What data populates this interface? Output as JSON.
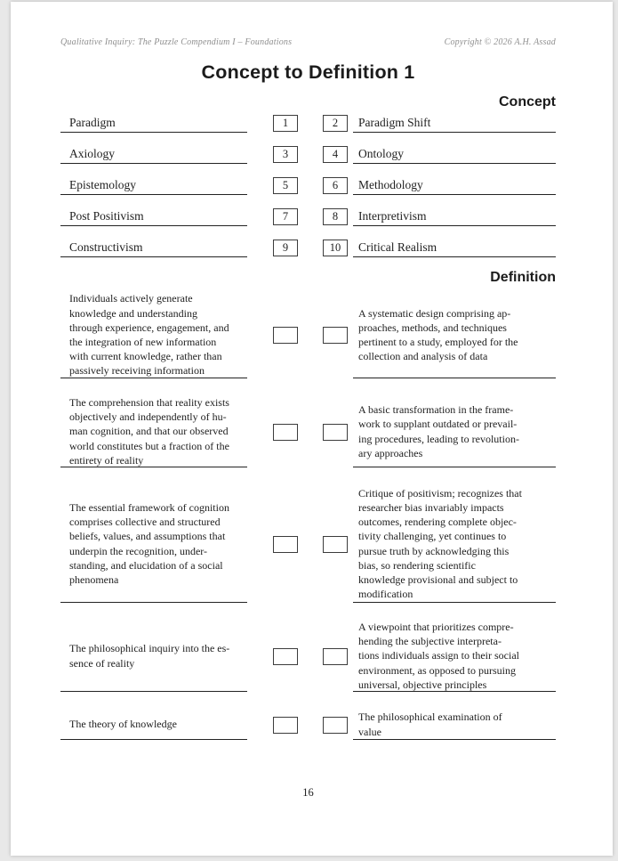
{
  "header": {
    "left": "Qualitative Inquiry: The Puzzle Compendium I – Foundations",
    "right": "Copyright © 2026 A.H. Assad"
  },
  "title": "Concept to Definition 1",
  "concept_section": {
    "heading": "Concept",
    "rows": [
      {
        "left_term": "Paradigm",
        "left_num": "1",
        "right_num": "2",
        "right_term": "Paradigm Shift"
      },
      {
        "left_term": "Axiology",
        "left_num": "3",
        "right_num": "4",
        "right_term": "Ontology"
      },
      {
        "left_term": "Epistemology",
        "left_num": "5",
        "right_num": "6",
        "right_term": "Methodology"
      },
      {
        "left_term": "Post Positivism",
        "left_num": "7",
        "right_num": "8",
        "right_term": "Interpretivism"
      },
      {
        "left_term": "Constructivism",
        "left_num": "9",
        "right_num": "10",
        "right_term": "Critical Realism"
      }
    ]
  },
  "definition_section": {
    "heading": "Definition",
    "rows": [
      {
        "left_text": "Individuals actively generate\nknowledge and understanding\nthrough experience, engagement, and\nthe integration of new information\nwith current knowledge, rather than\npassively receiving information",
        "right_text": "A systematic design comprising ap-\nproaches, methods, and techniques\npertinent to a study, employed for the\ncollection and analysis of data"
      },
      {
        "left_text": "The comprehension that reality exists\nobjectively and independently of hu-\nman cognition, and that our observed\nworld constitutes but a fraction of the\nentirety of reality",
        "right_text": "A basic transformation in the frame-\nwork to supplant outdated or prevail-\ning procedures, leading to revolution-\nary approaches"
      },
      {
        "left_text": "The essential framework of cognition\ncomprises collective and structured\nbeliefs, values, and assumptions that\nunderpin the recognition, under-\nstanding, and elucidation of a social\nphenomena",
        "right_text": "Critique of positivism; recognizes that\nresearcher bias invariably impacts\noutcomes, rendering complete objec-\ntivity challenging, yet continues to\npursue truth by acknowledging this\nbias, so rendering scientific\nknowledge provisional and subject to\nmodification"
      },
      {
        "left_text": "The philosophical inquiry into the es-\nsence of reality",
        "right_text": "A viewpoint that prioritizes compre-\nhending the subjective interpreta-\ntions individuals assign to their social\nenvironment, as opposed to pursuing\nuniversal, objective principles"
      },
      {
        "left_text": "The theory of knowledge",
        "right_text": "The philosophical examination of\nvalue"
      }
    ]
  },
  "footer": {
    "page_number": "16"
  }
}
